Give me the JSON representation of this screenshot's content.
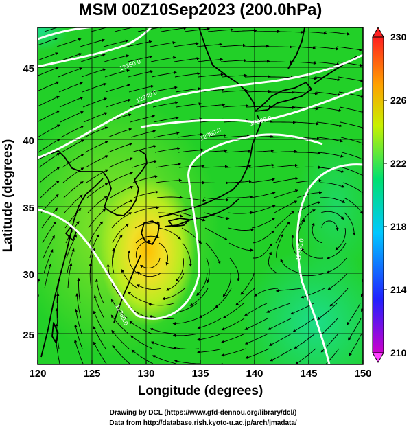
{
  "title": "MSM 00Z10Sep2023 (200.0hPa)",
  "x_axis": {
    "label": "Longitude (degrees)",
    "range": [
      120,
      150
    ],
    "ticks": [
      "120",
      "125",
      "130",
      "135",
      "140",
      "145",
      "150"
    ]
  },
  "y_axis": {
    "label": "Latitude  (degrees)",
    "range": [
      22.4,
      47.6
    ],
    "ticks": [
      "25",
      "30",
      "35",
      "40",
      "45"
    ]
  },
  "colorbar": {
    "range": [
      210,
      230
    ],
    "ticks": [
      "210",
      "214",
      "218",
      "222",
      "226",
      "230"
    ],
    "colors": [
      "#cc00cc",
      "#2020ff",
      "#00c8ff",
      "#00e070",
      "#c8f000",
      "#ffa000",
      "#ff2020"
    ]
  },
  "contour_labels": [
    "12360.0",
    "12240.0",
    "12360.0",
    "12360.0",
    "12360.0",
    "12360.0"
  ],
  "credits": {
    "line1": "Drawing by DCL (https://www.gfd-dennou.org/library/dcl/)",
    "line2": "Data from http://database.rish.kyoto-u.ac.jp/arch/jmadata/"
  },
  "map_style": {
    "background": "#22d028",
    "warm_core": "#f0e030",
    "coast_color": "#000000",
    "contour_color": "#ffffff",
    "grid": true
  },
  "chart_data": {
    "type": "heatmap",
    "title": "MSM 00Z10Sep2023 (200.0hPa)",
    "xlabel": "Longitude (degrees)",
    "ylabel": "Latitude  (degrees)",
    "xlim": [
      120,
      150
    ],
    "ylim": [
      22.4,
      47.6
    ],
    "color_range": [
      210,
      230
    ],
    "features": {
      "warm_max_center": {
        "lon": 130.0,
        "lat": 32.5
      },
      "cool_corners": [
        {
          "lon": 120.5,
          "lat": 47.5
        },
        {
          "lon": 149.5,
          "lat": 22.5
        }
      ]
    },
    "contours": [
      {
        "label": "12240.0",
        "points": [
          [
            120,
            46.5
          ],
          [
            124,
            47.3
          ],
          [
            128,
            47.6
          ]
        ]
      },
      {
        "label": "12360.0",
        "points": [
          [
            120,
            44.4
          ],
          [
            125,
            45.3
          ],
          [
            129,
            46.4
          ],
          [
            131,
            47.4
          ]
        ]
      },
      {
        "label": "12360.0",
        "points": [
          [
            120,
            39.0
          ],
          [
            124,
            40.0
          ],
          [
            128,
            42.0
          ],
          [
            133,
            43.6
          ],
          [
            138,
            44.1
          ],
          [
            142,
            44.5
          ],
          [
            146,
            45.3
          ],
          [
            150,
            46.5
          ]
        ]
      },
      {
        "label": "12360.0",
        "points": [
          [
            130,
            41.4
          ],
          [
            135,
            41.9
          ],
          [
            141,
            42.0
          ],
          [
            145,
            42.6
          ],
          [
            150,
            43.6
          ]
        ]
      },
      {
        "label": "12360.0",
        "points": [
          [
            120,
            34.9
          ],
          [
            123,
            34.2
          ],
          [
            125.5,
            31.5
          ],
          [
            127,
            28.2
          ],
          [
            130,
            26.8
          ],
          [
            133,
            27.0
          ],
          [
            134.5,
            29.5
          ],
          [
            133.8,
            33.5
          ],
          [
            134.2,
            36.5
          ],
          [
            136,
            38.5
          ],
          [
            141,
            39.8
          ],
          [
            145.5,
            39.0
          ]
        ]
      },
      {
        "label": "12360.0",
        "points": [
          [
            150,
            38.2
          ],
          [
            147,
            37.8
          ],
          [
            144,
            35.5
          ],
          [
            143.5,
            31.5
          ],
          [
            144.3,
            28.0
          ],
          [
            145.5,
            24.0
          ],
          [
            146.5,
            22.4
          ]
        ]
      }
    ]
  }
}
